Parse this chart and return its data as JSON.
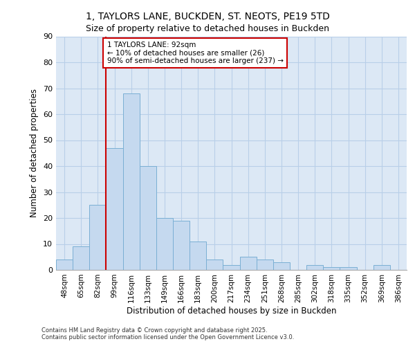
{
  "title_line1": "1, TAYLORS LANE, BUCKDEN, ST. NEOTS, PE19 5TD",
  "title_line2": "Size of property relative to detached houses in Buckden",
  "xlabel": "Distribution of detached houses by size in Buckden",
  "ylabel": "Number of detached properties",
  "categories": [
    "48sqm",
    "65sqm",
    "82sqm",
    "99sqm",
    "116sqm",
    "133sqm",
    "149sqm",
    "166sqm",
    "183sqm",
    "200sqm",
    "217sqm",
    "234sqm",
    "251sqm",
    "268sqm",
    "285sqm",
    "302sqm",
    "318sqm",
    "335sqm",
    "352sqm",
    "369sqm",
    "386sqm"
  ],
  "values": [
    4,
    9,
    25,
    47,
    68,
    40,
    20,
    19,
    11,
    4,
    2,
    5,
    4,
    3,
    0,
    2,
    1,
    1,
    0,
    2,
    0
  ],
  "bar_color": "#c5d9ef",
  "bar_edge_color": "#7aafd4",
  "vline_index": 2.5,
  "vline_color": "#cc0000",
  "annotation_text": "1 TAYLORS LANE: 92sqm\n← 10% of detached houses are smaller (26)\n90% of semi-detached houses are larger (237) →",
  "annotation_box_color": "#cc0000",
  "ylim": [
    0,
    90
  ],
  "yticks": [
    0,
    10,
    20,
    30,
    40,
    50,
    60,
    70,
    80,
    90
  ],
  "grid_color": "#b8cfe8",
  "background_color": "#dce8f5",
  "footer_text": "Contains HM Land Registry data © Crown copyright and database right 2025.\nContains public sector information licensed under the Open Government Licence v3.0."
}
